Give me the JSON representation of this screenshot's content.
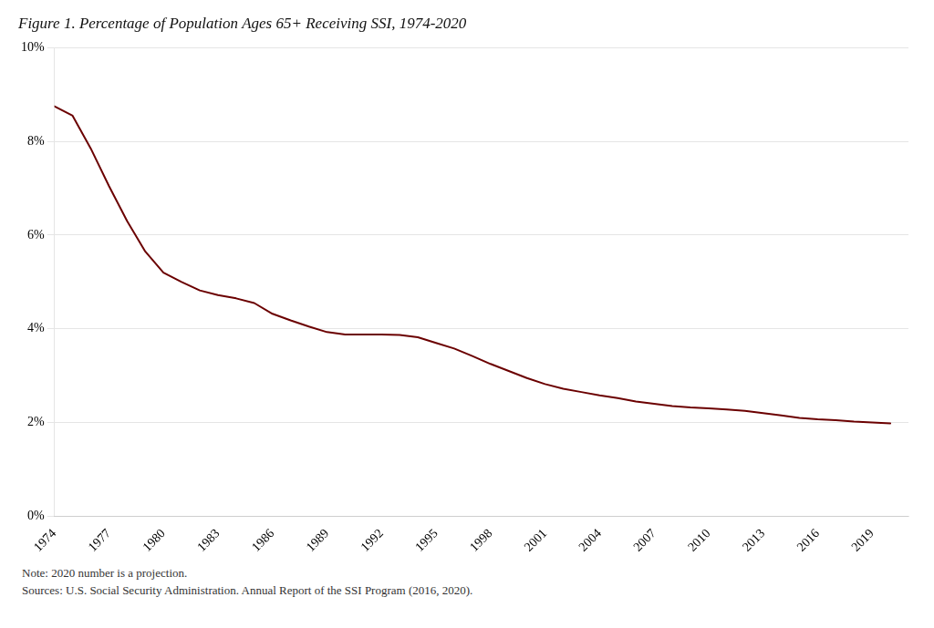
{
  "chart_data": {
    "type": "line",
    "title": "Figure 1. Percentage of Population Ages 65+ Receiving SSI, 1974-2020",
    "annotations": [
      "Note: 2020 number is a projection.",
      "Sources: U.S. Social Security Administration. Annual Report of the SSI Program (2016, 2020)."
    ],
    "color": "#6B0000",
    "x": [
      1974,
      1975,
      1976,
      1977,
      1978,
      1979,
      1980,
      1981,
      1982,
      1983,
      1984,
      1985,
      1986,
      1987,
      1988,
      1989,
      1990,
      1991,
      1992,
      1993,
      1994,
      1995,
      1996,
      1997,
      1998,
      1999,
      2000,
      2001,
      2002,
      2003,
      2004,
      2005,
      2006,
      2007,
      2008,
      2009,
      2010,
      2011,
      2012,
      2013,
      2014,
      2015,
      2016,
      2017,
      2018,
      2019,
      2020
    ],
    "values": [
      8.75,
      8.55,
      7.85,
      7.05,
      6.3,
      5.65,
      5.2,
      5.0,
      4.82,
      4.72,
      4.65,
      4.55,
      4.32,
      4.18,
      4.05,
      3.93,
      3.88,
      3.88,
      3.88,
      3.87,
      3.82,
      3.7,
      3.58,
      3.42,
      3.25,
      3.1,
      2.95,
      2.82,
      2.72,
      2.65,
      2.58,
      2.52,
      2.45,
      2.4,
      2.35,
      2.32,
      2.3,
      2.28,
      2.25,
      2.2,
      2.15,
      2.1,
      2.07,
      2.05,
      2.02,
      2.0,
      1.98
    ],
    "xlim": [
      1974,
      2021
    ],
    "xticks": [
      1974,
      1977,
      1980,
      1983,
      1986,
      1989,
      1992,
      1995,
      1998,
      2001,
      2004,
      2007,
      2010,
      2013,
      2016,
      2019
    ],
    "ylim": [
      0,
      10
    ],
    "yticks": [
      {
        "value": 0,
        "label": "0%"
      },
      {
        "value": 2,
        "label": "2%"
      },
      {
        "value": 4,
        "label": "4%"
      },
      {
        "value": 6,
        "label": "6%"
      },
      {
        "value": 8,
        "label": "8%"
      },
      {
        "value": 10,
        "label": "10%"
      }
    ],
    "grid": true
  }
}
